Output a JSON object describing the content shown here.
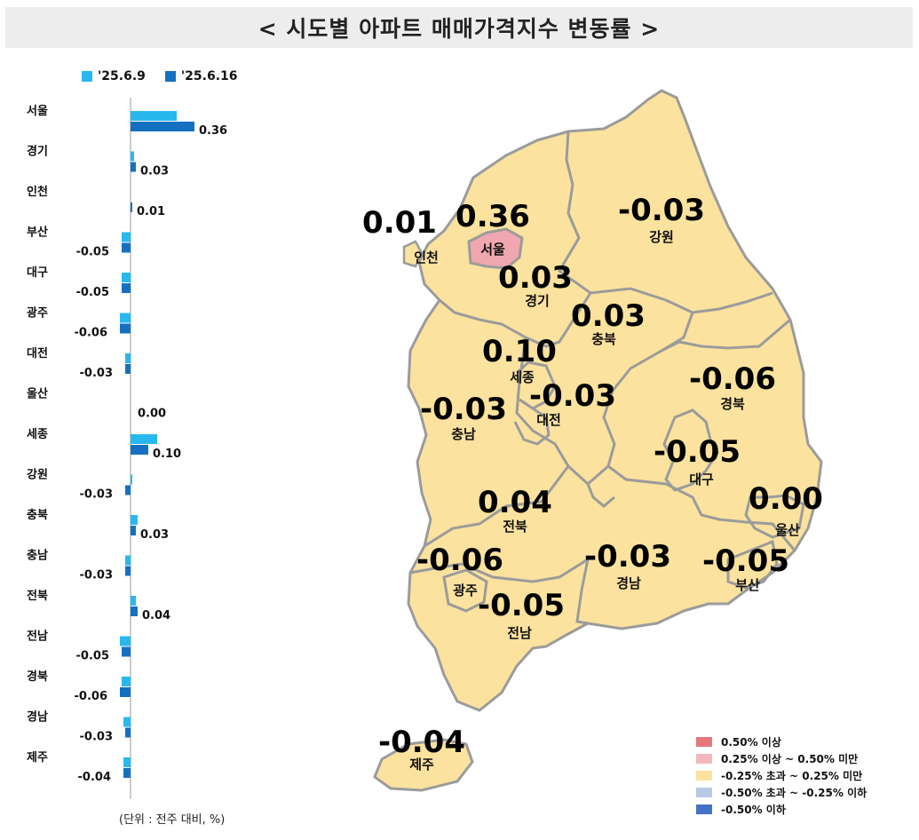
{
  "title": "< 시도별 아파트 매매가격지수 변동률 >",
  "unit_note": "(단위 : 전주 대비, %)",
  "colors": {
    "prev_week": "#29b8ee",
    "this_week": "#1670c2",
    "map_base": "#fbe29e",
    "map_seoul": "#f0a7b0",
    "map_border": "#9b9b9b"
  },
  "chart_data": {
    "type": "bar",
    "orientation": "horizontal",
    "categories": [
      "서울",
      "경기",
      "인천",
      "부산",
      "대구",
      "광주",
      "대전",
      "울산",
      "세종",
      "강원",
      "충북",
      "충남",
      "전북",
      "전남",
      "경북",
      "경남",
      "제주"
    ],
    "series": [
      {
        "name": "'25.6.9",
        "values": [
          0.26,
          0.02,
          0.0,
          -0.05,
          -0.05,
          -0.06,
          -0.03,
          0.0,
          0.15,
          0.01,
          0.04,
          -0.03,
          0.03,
          -0.06,
          -0.05,
          -0.04,
          -0.04
        ]
      },
      {
        "name": "'25.6.16",
        "values": [
          0.36,
          0.03,
          0.01,
          -0.05,
          -0.05,
          -0.06,
          -0.03,
          0.0,
          0.1,
          -0.03,
          0.03,
          -0.03,
          0.04,
          -0.05,
          -0.06,
          -0.03,
          -0.04
        ]
      }
    ],
    "value_labels": [
      "0.36",
      "0.03",
      "0.01",
      "-0.05",
      "-0.05",
      "-0.06",
      "-0.03",
      "0.00",
      "0.10",
      "-0.03",
      "0.03",
      "-0.03",
      "0.04",
      "-0.05",
      "-0.06",
      "-0.03",
      "-0.04"
    ]
  },
  "map": {
    "regions": [
      {
        "name": "인천",
        "value": "0.01"
      },
      {
        "name": "서울",
        "value": "0.36"
      },
      {
        "name": "강원",
        "value": "-0.03"
      },
      {
        "name": "경기",
        "value": "0.03"
      },
      {
        "name": "충북",
        "value": "0.03"
      },
      {
        "name": "세종",
        "value": "0.10"
      },
      {
        "name": "대전",
        "value": "-0.03"
      },
      {
        "name": "경북",
        "value": "-0.06"
      },
      {
        "name": "충남",
        "value": "-0.03"
      },
      {
        "name": "대구",
        "value": "-0.05"
      },
      {
        "name": "울산",
        "value": "0.00"
      },
      {
        "name": "전북",
        "value": "0.04"
      },
      {
        "name": "광주",
        "value": "-0.06"
      },
      {
        "name": "경남",
        "value": "-0.03"
      },
      {
        "name": "부산",
        "value": "-0.05"
      },
      {
        "name": "전남",
        "value": "-0.05"
      },
      {
        "name": "제주",
        "value": "-0.04"
      }
    ],
    "legend": [
      {
        "label": "0.50% 이상",
        "color": "#e4787c"
      },
      {
        "label": "0.25% 이상 ~ 0.50% 미만",
        "color": "#f2b7bd"
      },
      {
        "label": "-0.25% 초과 ~ 0.25% 미만",
        "color": "#fbe29e"
      },
      {
        "label": "-0.50% 초과 ~ -0.25% 이하",
        "color": "#b7c9e4"
      },
      {
        "label": "-0.50% 이하",
        "color": "#4472c4"
      }
    ]
  }
}
